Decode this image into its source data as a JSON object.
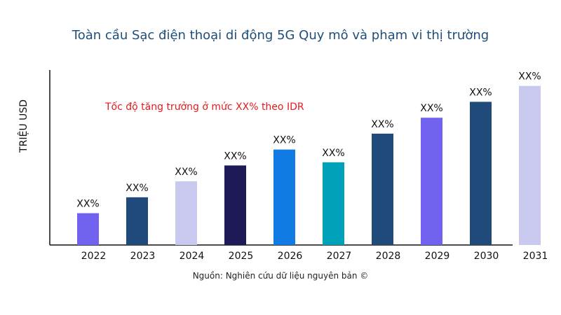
{
  "chart_data": {
    "type": "bar",
    "title": "Toàn cầu Sạc điện thoại di động 5G Quy mô và phạm vi thị trường",
    "xlabel": "",
    "ylabel": "TRIỆU USD",
    "ylim": [
      0,
      110
    ],
    "grid": false,
    "categories": [
      "2022",
      "2023",
      "2024",
      "2025",
      "2026",
      "2027",
      "2028",
      "2029",
      "2030",
      "2031"
    ],
    "values": [
      20,
      30,
      40,
      50,
      60,
      52,
      70,
      80,
      90,
      100
    ],
    "data_labels": [
      "XX%",
      "XX%",
      "XX%",
      "XX%",
      "XX%",
      "XX%",
      "XX%",
      "XX%",
      "XX%",
      "XX%"
    ],
    "colors": [
      "#7262f0",
      "#1f4a7a",
      "#c9c9ef",
      "#1e1a57",
      "#0f7be3",
      "#00a2b9",
      "#1f4a7a",
      "#7262f0",
      "#1f4a7a",
      "#c9c9ef"
    ],
    "annotation": "Tốc độ tăng trưởng ở mức XX% theo IDR",
    "source": "Nguồn: Nghiên cứu dữ liệu nguyên bản ©"
  }
}
